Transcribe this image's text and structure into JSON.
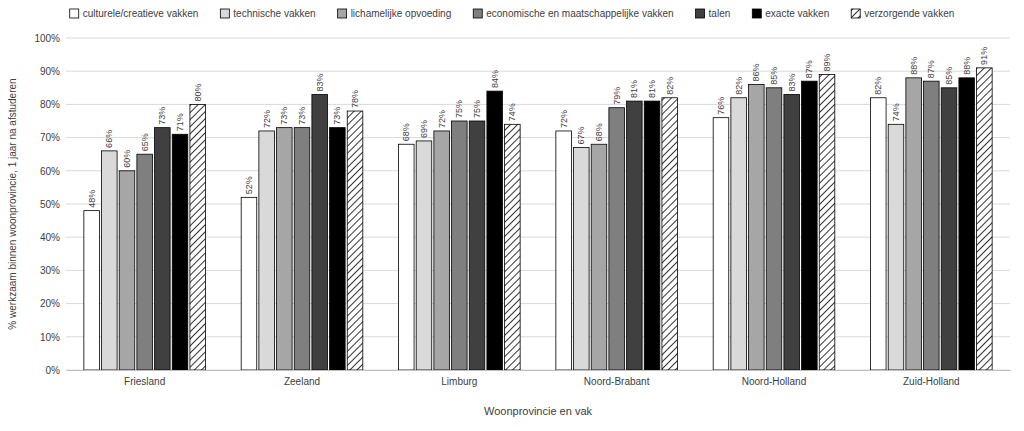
{
  "chart_data": {
    "type": "bar",
    "x_label": "Woonprovincie en vak",
    "y_label": "% werkzaam binnen woonprovincie, 1 jaar na afstuderen",
    "categories": [
      "Friesland",
      "Zeeland",
      "Limburg",
      "Noord-Brabant",
      "Noord-Holland",
      "Zuid-Holland"
    ],
    "series": [
      {
        "name": "culturele/creatieve vakken",
        "color": "#ffffff",
        "values": [
          48,
          52,
          68,
          72,
          76,
          82
        ],
        "value_labels": [
          "48%",
          "52%",
          "68%",
          "72%",
          "76%",
          "82%"
        ]
      },
      {
        "name": "technische vakken",
        "color": "#d9d9d9",
        "values": [
          66,
          72,
          69,
          67,
          82,
          74
        ],
        "value_labels": [
          "66%",
          "72%",
          "69%",
          "67%",
          "82%",
          "74%"
        ]
      },
      {
        "name": "lichamelijke opvoeding",
        "color": "#a6a6a6",
        "values": [
          60,
          73,
          72,
          68,
          86,
          88
        ],
        "value_labels": [
          "60%",
          "73%",
          "72%",
          "68%",
          "86%",
          "88%"
        ]
      },
      {
        "name": "economische en maatschappelijke vakken",
        "color": "#7f7f7f",
        "values": [
          65,
          73,
          75,
          79,
          85,
          87
        ],
        "value_labels": [
          "65%",
          "73%",
          "75%",
          "79%",
          "85%",
          "87%"
        ]
      },
      {
        "name": "talen",
        "color": "#404040",
        "values": [
          73,
          83,
          75,
          81,
          83,
          85
        ],
        "value_labels": [
          "73%",
          "83%",
          "75%",
          "81%",
          "83%",
          "85%"
        ]
      },
      {
        "name": "exacte vakken",
        "color": "#000000",
        "values": [
          71,
          73,
          84,
          81,
          87,
          88
        ],
        "value_labels": [
          "71%",
          "73%",
          "84%",
          "81%",
          "87%",
          "88%"
        ]
      },
      {
        "name": "verzorgende vakken",
        "color": "#000000",
        "marker": "hatch",
        "values": [
          80,
          78,
          74,
          82,
          89,
          91
        ],
        "value_labels": [
          "80%",
          "78%",
          "74%",
          "82%",
          "89%",
          "91%"
        ]
      }
    ],
    "ylim": [
      0,
      100
    ],
    "yticks": [
      {
        "value": 0,
        "label": "0%"
      },
      {
        "value": 10,
        "label": "10%"
      },
      {
        "value": 20,
        "label": "20%"
      },
      {
        "value": 30,
        "label": "30%"
      },
      {
        "value": 40,
        "label": "40%"
      },
      {
        "value": 50,
        "label": "50%"
      },
      {
        "value": 60,
        "label": "60%"
      },
      {
        "value": 70,
        "label": "70%"
      },
      {
        "value": 80,
        "label": "80%"
      },
      {
        "value": 90,
        "label": "90%"
      },
      {
        "value": 100,
        "label": "100%"
      }
    ],
    "grid": true,
    "legend": "top",
    "data_labels": true
  }
}
